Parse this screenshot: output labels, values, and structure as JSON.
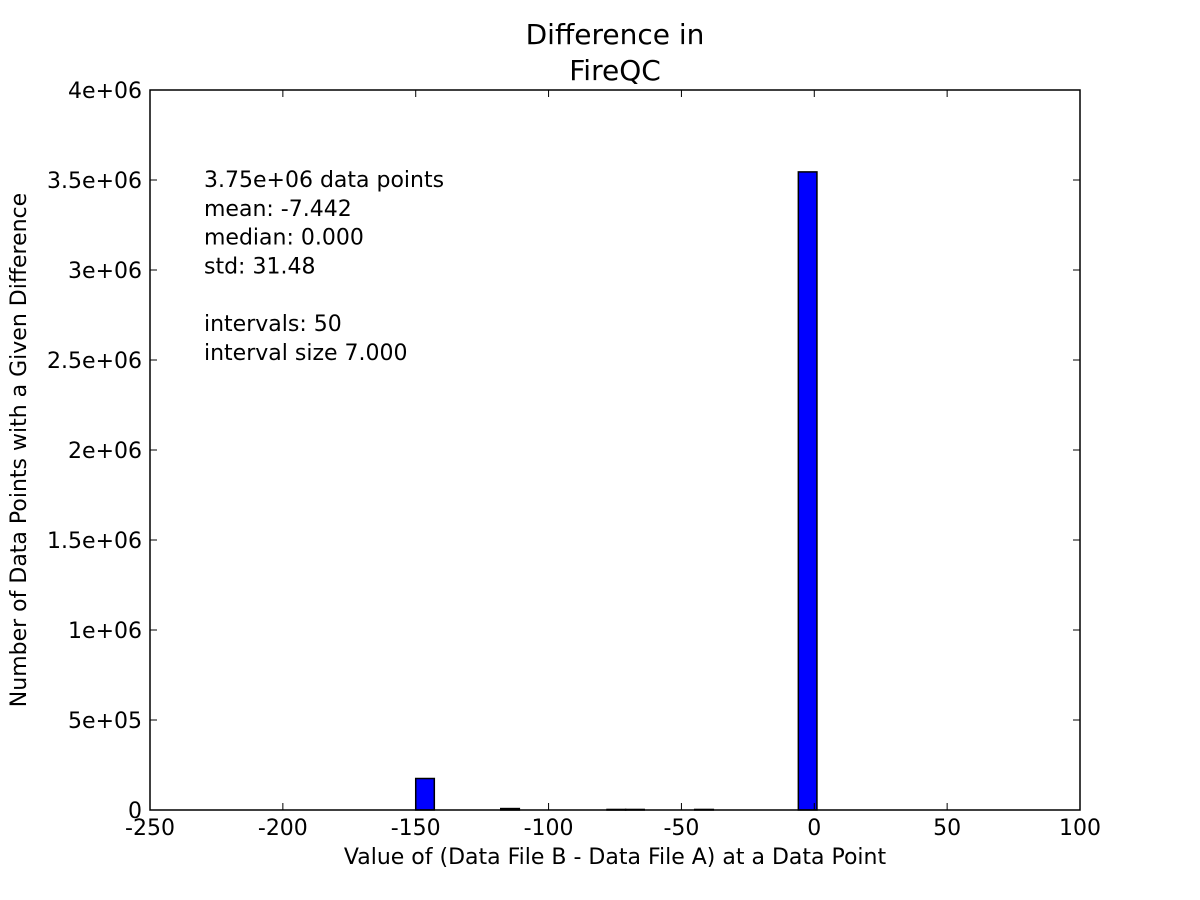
{
  "chart_data": {
    "type": "bar",
    "title": [
      "Difference in",
      "FireQC"
    ],
    "xlabel": "Value of (Data File B - Data File A) at a Data Point",
    "ylabel": "Number of Data Points with a Given Difference",
    "xlim": [
      -250,
      100
    ],
    "ylim": [
      0,
      4000000
    ],
    "xticks": [
      -250,
      -200,
      -150,
      -100,
      -50,
      0,
      50,
      100
    ],
    "xtick_labels": [
      "-250",
      "-200",
      "-150",
      "-100",
      "-50",
      "0",
      "50",
      "100"
    ],
    "yticks": [
      0,
      500000,
      1000000,
      1500000,
      2000000,
      2500000,
      3000000,
      3500000,
      4000000
    ],
    "ytick_labels": [
      "0",
      "5e+05",
      "1e+06",
      "1.5e+06",
      "2e+06",
      "2.5e+06",
      "3e+06",
      "3.5e+06",
      "4e+06"
    ],
    "grid": false,
    "bar_color": "#0000ff",
    "bars": [
      {
        "x_start": -150,
        "x_end": -143,
        "value": 175000
      },
      {
        "x_start": -118,
        "x_end": -111,
        "value": 8000
      },
      {
        "x_start": -78,
        "x_end": -71,
        "value": 3000
      },
      {
        "x_start": -71,
        "x_end": -64,
        "value": 3000
      },
      {
        "x_start": -45,
        "x_end": -38,
        "value": 3000
      },
      {
        "x_start": -6,
        "x_end": 1,
        "value": 3545000
      }
    ],
    "annotation": {
      "lines": [
        "3.75e+06 data points",
        "mean: -7.442",
        "median: 0.000",
        "std: 31.48",
        "",
        "intervals: 50",
        "interval size 7.000"
      ]
    }
  }
}
